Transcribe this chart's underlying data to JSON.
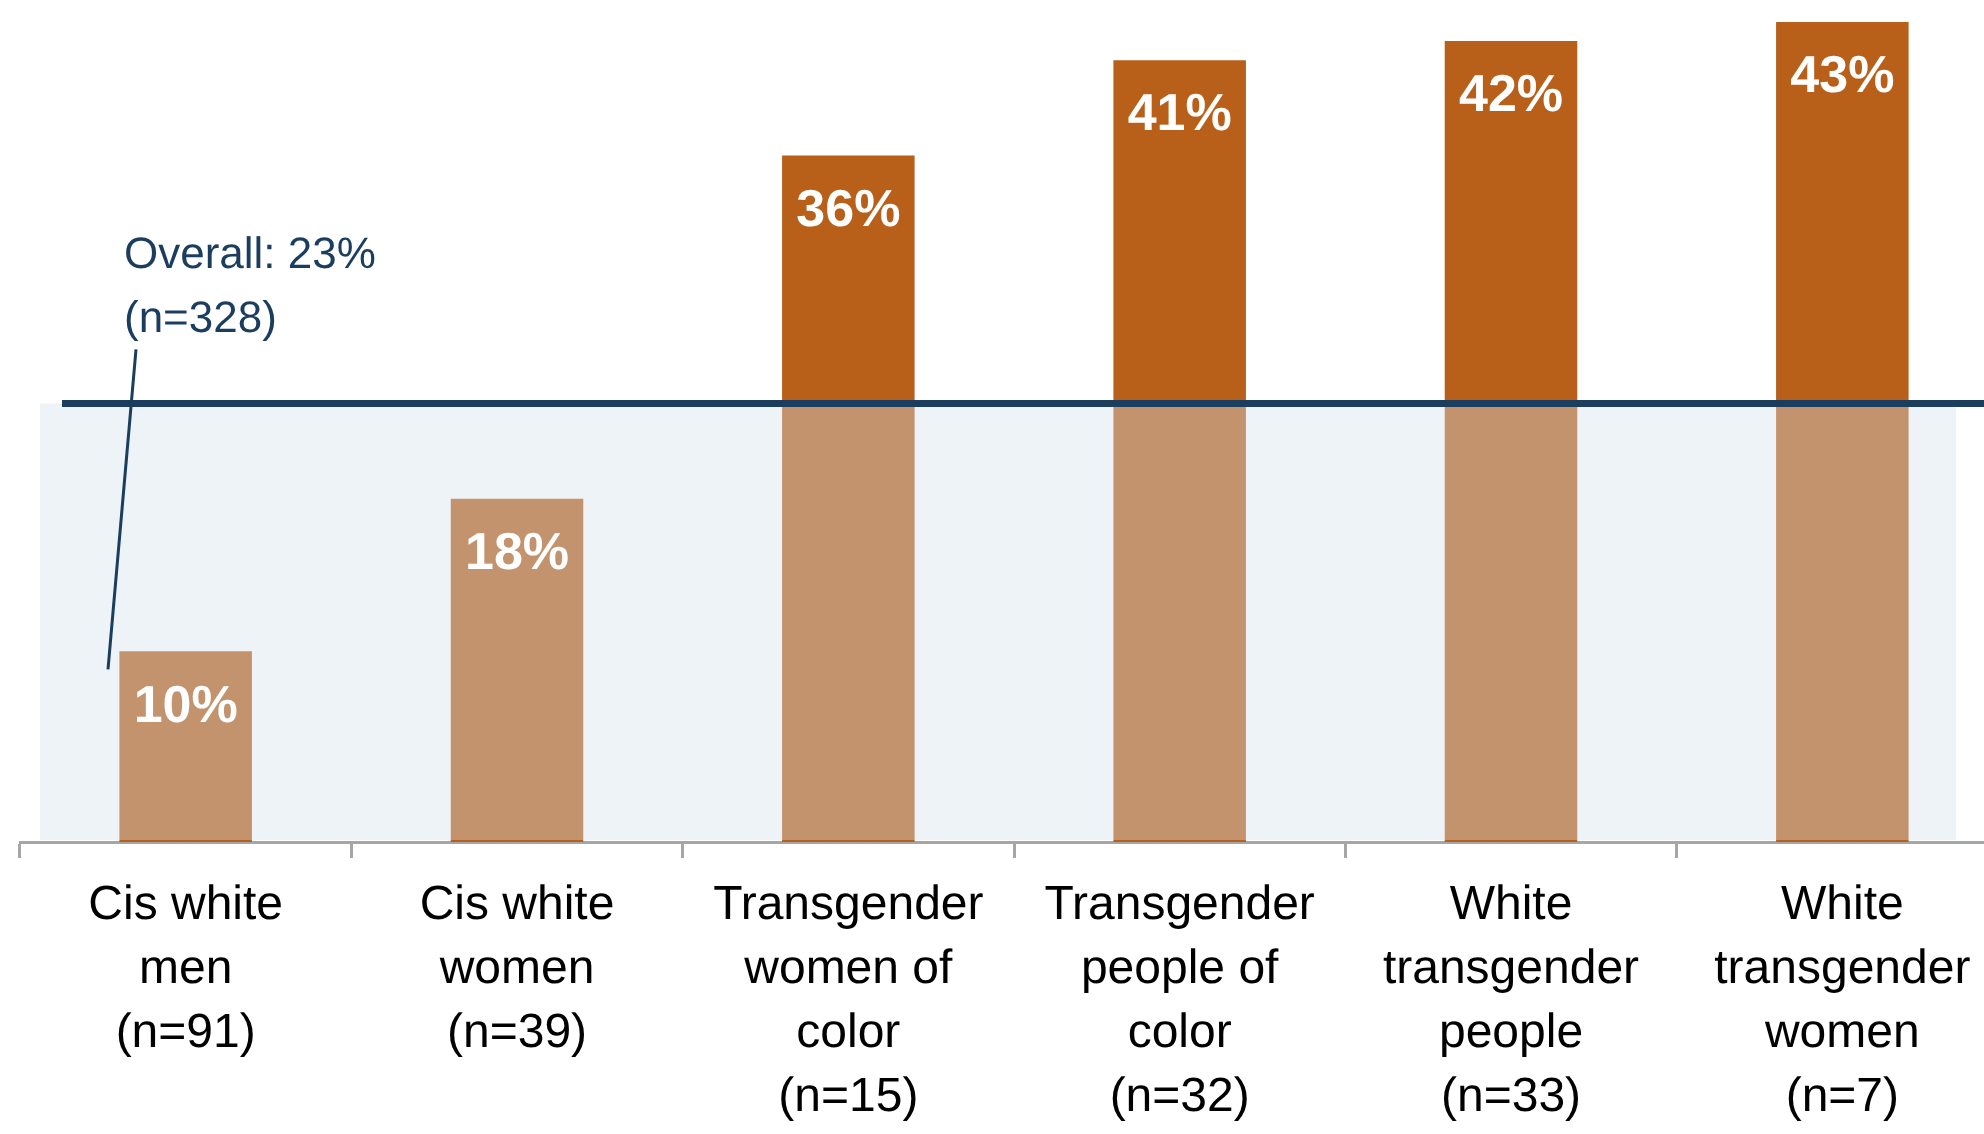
{
  "chart_data": {
    "type": "bar",
    "categories": [
      "Cis white men\n(n=91)",
      "Cis white women\n(n=39)",
      "Transgender women of color\n(n=15)",
      "Transgender people of color\n(n=32)",
      "White transgender people\n(n=33)",
      "White transgender women\n(n=7)"
    ],
    "values": [
      10,
      18,
      36,
      41,
      42,
      43
    ],
    "color": "#b8601a",
    "value_labels": [
      "10%",
      "18%",
      "36%",
      "41%",
      "42%",
      "43%"
    ],
    "tick_labels": "x",
    "ref_lines": [
      {
        "axis": "y",
        "value": 23,
        "label": "Overall: 23%\n(n=328)",
        "color": "#1b3d5e"
      }
    ],
    "bands": [
      {
        "axis": "y",
        "from": 0,
        "to": 23,
        "color": "#eef3f8"
      }
    ]
  }
}
